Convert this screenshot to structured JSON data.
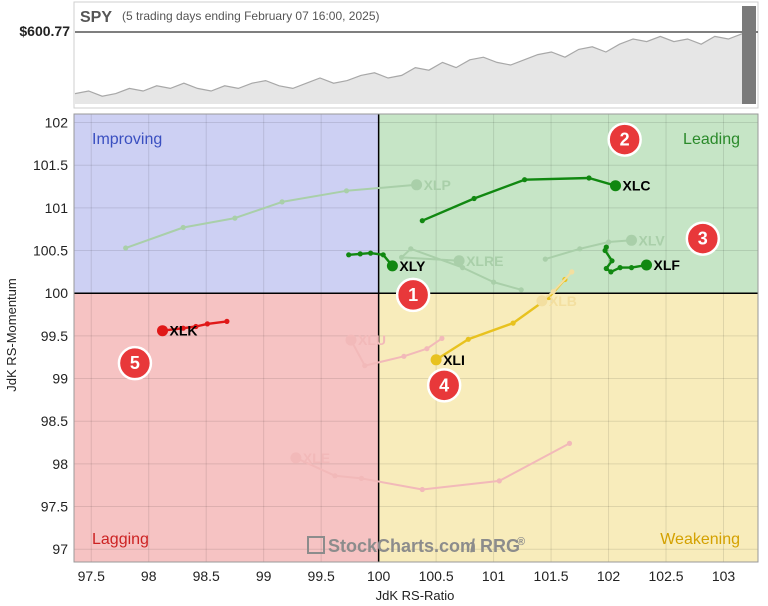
{
  "header": {
    "symbol": "SPY",
    "subtitle": "(5 trading days ending February 07 16:00, 2025)",
    "price": "$600.77"
  },
  "colors": {
    "improving": "#cdd0f3",
    "leading": "#c6e5c6",
    "lagging": "#f6c3c3",
    "weakening": "#f8ecbb",
    "improving_text": "#3a4fc0",
    "leading_text": "#2a8a2a",
    "lagging_text": "#cc2222",
    "weakening_text": "#d4a100",
    "badge": "#e8383a"
  },
  "quadrants": {
    "improving": "Improving",
    "leading": "Leading",
    "lagging": "Lagging",
    "weakening": "Weakening"
  },
  "brand": {
    "name": "StockCharts.com",
    "suffix": "/ RRG",
    "reg": "®"
  },
  "chart_data": {
    "type": "scatter",
    "xlabel": "JdK RS-Ratio",
    "ylabel": "JdK RS-Momentum",
    "xlim": [
      97.35,
      103.3
    ],
    "ylim": [
      96.85,
      102.1
    ],
    "xticks": [
      "97.5",
      "98",
      "98.5",
      "99",
      "99.5",
      "100",
      "100.5",
      "101",
      "101.5",
      "102",
      "102.5",
      "103"
    ],
    "yticks": [
      "102",
      "101.5",
      "101",
      "100.5",
      "100",
      "99.5",
      "99",
      "98.5",
      "98",
      "97.5",
      "97"
    ],
    "center": [
      100,
      100
    ],
    "series": [
      {
        "name": "XLC",
        "color": "#118811",
        "faded": false,
        "x": [
          100.38,
          100.83,
          101.27,
          101.83,
          102.06
        ],
        "y": [
          100.85,
          101.11,
          101.33,
          101.35,
          101.26
        ]
      },
      {
        "name": "XLF",
        "color": "#118811",
        "faded": false,
        "x": [
          101.98,
          101.97,
          102.03,
          101.98,
          102.02,
          102.1,
          102.2,
          102.33
        ],
        "y": [
          100.54,
          100.5,
          100.38,
          100.29,
          100.25,
          100.3,
          100.3,
          100.33
        ]
      },
      {
        "name": "XLY",
        "color": "#118811",
        "faded": false,
        "x": [
          99.74,
          99.84,
          99.93,
          100.04,
          100.12
        ],
        "y": [
          100.45,
          100.46,
          100.47,
          100.45,
          100.32
        ]
      },
      {
        "name": "XLK",
        "color": "#e01818",
        "faded": false,
        "x": [
          98.68,
          98.51,
          98.41,
          98.3,
          98.12
        ],
        "y": [
          99.67,
          99.64,
          99.61,
          99.59,
          99.56
        ]
      },
      {
        "name": "XLI",
        "color": "#e8c21f",
        "faded": false,
        "x": [
          101.62,
          101.48,
          101.17,
          100.78,
          100.5
        ],
        "y": [
          100.16,
          99.95,
          99.65,
          99.46,
          99.22
        ]
      },
      {
        "name": "XLP",
        "color": "#a9cfa9",
        "faded": true,
        "x": [
          97.8,
          98.3,
          98.75,
          99.16,
          99.72,
          100.33
        ],
        "y": [
          100.53,
          100.77,
          100.88,
          101.07,
          101.2,
          101.27
        ]
      },
      {
        "name": "XLV",
        "color": "#a9cfa9",
        "faded": true,
        "x": [
          101.45,
          101.75,
          102.0,
          102.2
        ],
        "y": [
          100.4,
          100.52,
          100.6,
          100.62
        ]
      },
      {
        "name": "XLRE",
        "color": "#a9cfa9",
        "faded": true,
        "x": [
          101.24,
          101.0,
          100.73,
          100.28,
          100.2,
          100.7
        ],
        "y": [
          100.04,
          100.13,
          100.3,
          100.52,
          100.42,
          100.38
        ]
      },
      {
        "name": "XLB",
        "color": "#f3dfa0",
        "faded": true,
        "x": [
          101.68,
          101.52,
          101.42
        ],
        "y": [
          100.25,
          100.02,
          99.91
        ]
      },
      {
        "name": "XLU",
        "color": "#f2b9b9",
        "faded": true,
        "x": [
          100.55,
          100.42,
          100.22,
          99.88,
          99.76
        ],
        "y": [
          99.47,
          99.35,
          99.26,
          99.15,
          99.45
        ]
      },
      {
        "name": "XLE",
        "color": "#f2b9b9",
        "faded": true,
        "x": [
          101.66,
          101.05,
          100.38,
          99.85,
          99.62,
          99.28
        ],
        "y": [
          98.24,
          97.8,
          97.7,
          97.83,
          97.86,
          98.07
        ]
      }
    ],
    "badges": [
      {
        "label": "1",
        "x": 100.3,
        "y": 99.98
      },
      {
        "label": "2",
        "x": 102.14,
        "y": 101.8
      },
      {
        "label": "3",
        "x": 102.82,
        "y": 100.64
      },
      {
        "label": "4",
        "x": 100.57,
        "y": 98.92
      },
      {
        "label": "5",
        "x": 97.88,
        "y": 99.18
      }
    ],
    "spy_line": [
      0.78,
      0.79,
      0.77,
      0.78,
      0.8,
      0.79,
      0.81,
      0.8,
      0.82,
      0.8,
      0.79,
      0.81,
      0.8,
      0.82,
      0.83,
      0.81,
      0.8,
      0.82,
      0.84,
      0.82,
      0.83,
      0.85,
      0.86,
      0.84,
      0.85,
      0.88,
      0.87,
      0.9,
      0.88,
      0.91,
      0.92,
      0.9,
      0.89,
      0.91,
      0.93,
      0.94,
      0.92,
      0.95,
      0.96,
      0.94,
      0.97,
      0.99,
      0.98,
      1.0,
      0.98,
      0.99,
      0.97,
      1.0,
      0.99,
      1.01
    ]
  }
}
